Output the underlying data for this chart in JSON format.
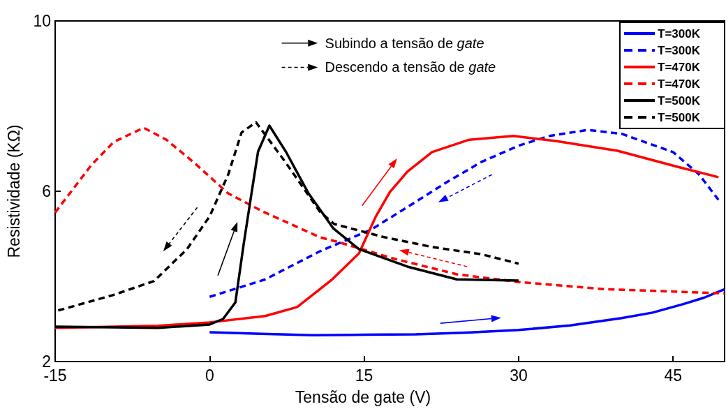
{
  "chart_data": {
    "type": "line",
    "xlabel": "Tensão de gate (V)",
    "ylabel": "Resistividade (KΩ)",
    "annotations": [
      "Subindo a tensão de gate",
      "Descendo a tensão de gate"
    ],
    "xlim": [
      -15,
      50
    ],
    "xticks": [
      -15,
      0,
      15,
      30,
      45
    ],
    "ylim": [
      2,
      10
    ],
    "yticks": [
      2,
      6,
      10
    ],
    "grid": false,
    "legend": "top right",
    "marker": "none",
    "series": [
      {
        "name": "T=300K",
        "color": "#0000ff",
        "line_style": "solid",
        "x": [
          0,
          5,
          10,
          15,
          20,
          25,
          30,
          35,
          40,
          43,
          46,
          48,
          50
        ],
        "values": [
          2.69,
          2.65,
          2.62,
          2.63,
          2.64,
          2.68,
          2.74,
          2.85,
          3.02,
          3.15,
          3.35,
          3.5,
          3.7
        ]
      },
      {
        "name": "T=300K",
        "color": "#0000ff",
        "line_style": "dashed",
        "x": [
          0,
          5.4,
          10.7,
          15.7,
          20,
          23,
          26.4,
          30,
          33,
          36.7,
          40,
          45,
          47.5,
          49.4
        ],
        "values": [
          3.52,
          3.93,
          4.59,
          5.1,
          5.75,
          6.21,
          6.69,
          7.07,
          7.3,
          7.44,
          7.35,
          6.92,
          6.4,
          5.8
        ]
      },
      {
        "name": "T=470K",
        "color": "#ff0000",
        "line_style": "solid",
        "x": [
          -15,
          -5,
          0,
          5.4,
          8.5,
          11.9,
          14.5,
          16.1,
          17.5,
          19.2,
          21.6,
          25.2,
          29.5,
          33.6,
          39.6,
          45.5,
          49.4
        ],
        "values": [
          2.79,
          2.84,
          2.92,
          3.07,
          3.28,
          3.93,
          4.54,
          5.39,
          5.98,
          6.46,
          6.92,
          7.21,
          7.3,
          7.18,
          6.95,
          6.57,
          6.33
        ]
      },
      {
        "name": "T=470K",
        "color": "#ff0000",
        "line_style": "dashed",
        "x": [
          -15,
          -11.5,
          -9.3,
          -6.4,
          -4.2,
          -1.5,
          1.8,
          5.2,
          10.7,
          12.3,
          18,
          24,
          30,
          38.4,
          45.5,
          50
        ],
        "values": [
          5.5,
          6.61,
          7.16,
          7.49,
          7.21,
          6.67,
          5.95,
          5.52,
          4.92,
          4.82,
          4.41,
          4.05,
          3.87,
          3.7,
          3.64,
          3.6
        ]
      },
      {
        "name": "T=500K",
        "color": "#000000",
        "line_style": "solid",
        "x": [
          -15,
          -5,
          0,
          1.3,
          2.5,
          3.3,
          4,
          4.7,
          5.8,
          7.4,
          9.6,
          12,
          14.5,
          19.2,
          24,
          30
        ],
        "values": [
          2.82,
          2.79,
          2.87,
          3.0,
          3.39,
          4.75,
          5.85,
          6.93,
          7.54,
          6.93,
          5.95,
          5.13,
          4.64,
          4.23,
          3.93,
          3.9
        ]
      },
      {
        "name": "T=500K",
        "color": "#000000",
        "line_style": "dashed",
        "x": [
          -14.7,
          -9.4,
          -5.4,
          -2.2,
          0,
          1.8,
          3.1,
          4.5,
          7.4,
          10.7,
          12.1,
          16.8,
          21.6,
          26.4,
          30
        ],
        "values": [
          3.2,
          3.56,
          3.89,
          4.64,
          5.41,
          6.39,
          7.38,
          7.62,
          6.67,
          5.52,
          5.23,
          4.93,
          4.69,
          4.52,
          4.3
        ]
      }
    ]
  }
}
